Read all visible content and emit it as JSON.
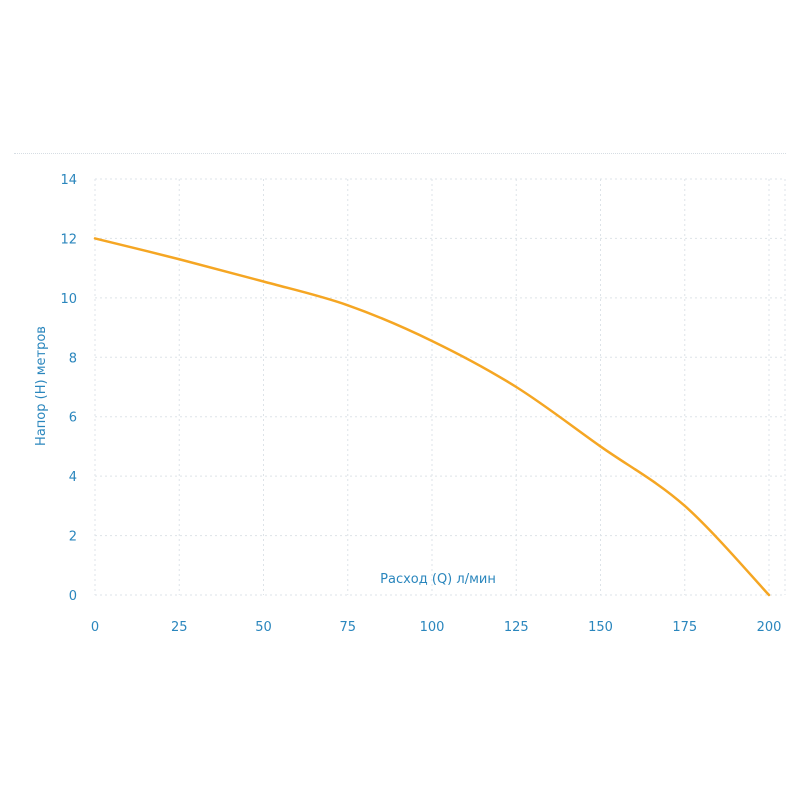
{
  "chart_data": {
    "type": "line",
    "title": "",
    "xlabel": "Расход (Q) л/мин",
    "ylabel": "Напор (H) метров",
    "x_ticks": [
      0,
      25,
      50,
      75,
      100,
      125,
      150,
      175,
      200
    ],
    "y_ticks": [
      0,
      2,
      4,
      6,
      8,
      10,
      12,
      14
    ],
    "xlim": [
      0,
      200
    ],
    "ylim": [
      0,
      14
    ],
    "grid": true,
    "series": [
      {
        "color": "#f5a623",
        "points": [
          [
            0,
            12.0
          ],
          [
            25,
            11.3
          ],
          [
            50,
            10.55
          ],
          [
            75,
            9.75
          ],
          [
            100,
            8.55
          ],
          [
            125,
            7.0
          ],
          [
            150,
            5.0
          ],
          [
            175,
            3.0
          ],
          [
            200,
            0.0
          ]
        ]
      }
    ]
  },
  "colors": {
    "axis_text": "#2a86bd",
    "grid": "#dde3e8",
    "line": "#f5a623"
  }
}
